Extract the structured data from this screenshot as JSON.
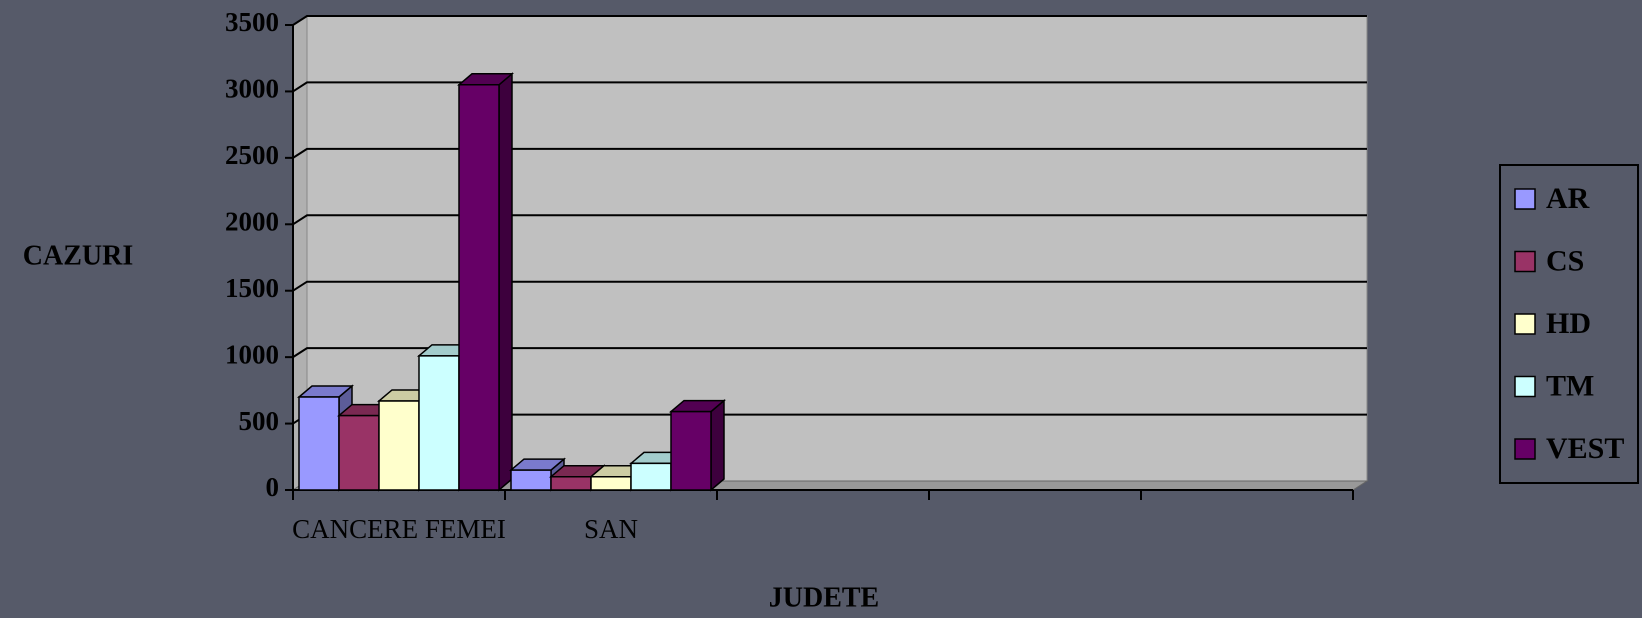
{
  "chart_data": {
    "type": "bar3d",
    "categories": [
      "CANCERE FEMEI",
      "SAN",
      null,
      null,
      null
    ],
    "series": [
      {
        "name": "AR",
        "color": "#9999ff",
        "values": [
          700,
          150,
          null,
          null,
          null
        ]
      },
      {
        "name": "CS",
        "color": "#993366",
        "values": [
          560,
          100,
          null,
          null,
          null
        ]
      },
      {
        "name": "HD",
        "color": "#ffffcc",
        "values": [
          670,
          100,
          null,
          null,
          null
        ]
      },
      {
        "name": "TM",
        "color": "#ccffff",
        "values": [
          1010,
          200,
          null,
          null,
          null
        ]
      },
      {
        "name": "VEST",
        "color": "#660066",
        "values": [
          3050,
          590,
          null,
          null,
          null
        ]
      }
    ],
    "ylim": [
      0,
      3500
    ],
    "yticks": [
      0,
      500,
      1000,
      1500,
      2000,
      2500,
      3000,
      3500
    ],
    "y_label": "CAZURI",
    "x_label": "JUDETE",
    "grid": true,
    "legend": "right"
  }
}
